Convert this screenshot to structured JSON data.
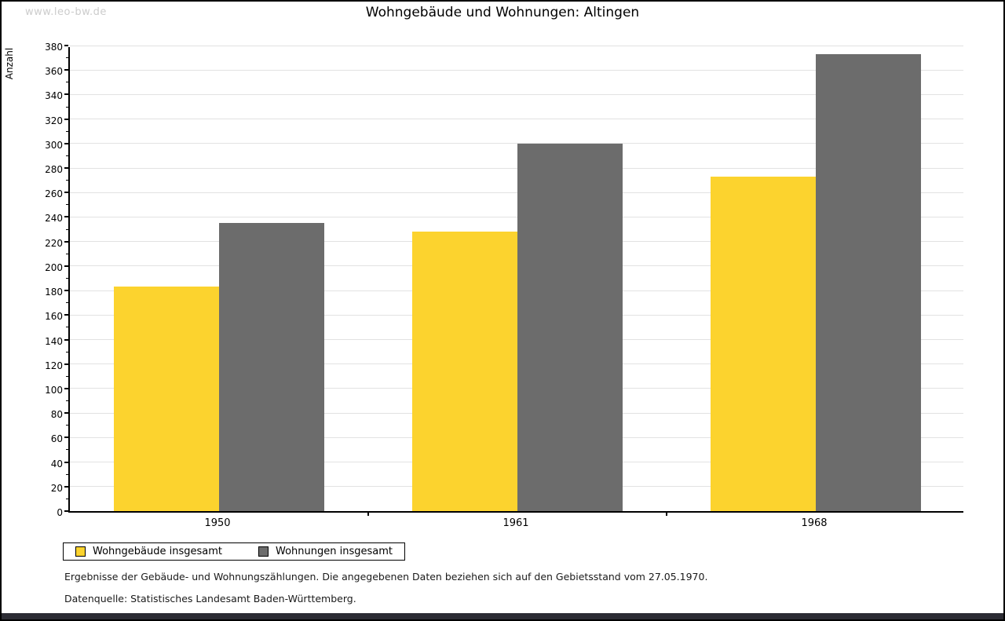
{
  "watermark": "www.leo-bw.de",
  "chart_data": {
    "type": "bar",
    "title": "Wohngebäude und Wohnungen: Altingen",
    "xlabel": "",
    "ylabel": "Anzahl",
    "categories": [
      "1950",
      "1961",
      "1968"
    ],
    "series": [
      {
        "name": "Wohngebäude insgesamt",
        "color": "#fcd32e",
        "values": [
          183,
          228,
          273
        ]
      },
      {
        "name": "Wohnungen insgesamt",
        "color": "#6c6c6c",
        "values": [
          235,
          300,
          373
        ]
      }
    ],
    "ylim": [
      0,
      380
    ],
    "ytick_step": 20,
    "minor_tick_step": 10,
    "grid": true,
    "gridline_color": "#e2e2e2",
    "legend_position": "bottom-left"
  },
  "footer": {
    "line1": "Ergebnisse der Gebäude- und Wohnungszählungen. Die angegebenen Daten beziehen sich auf den Gebietsstand vom 27.05.1970.",
    "line2": "Datenquelle: Statistisches Landesamt Baden-Württemberg."
  },
  "colors": {
    "background": "#ffffff",
    "border": "#000000",
    "watermark": "#cccccc",
    "bottom_strip": "#2c2c34"
  }
}
